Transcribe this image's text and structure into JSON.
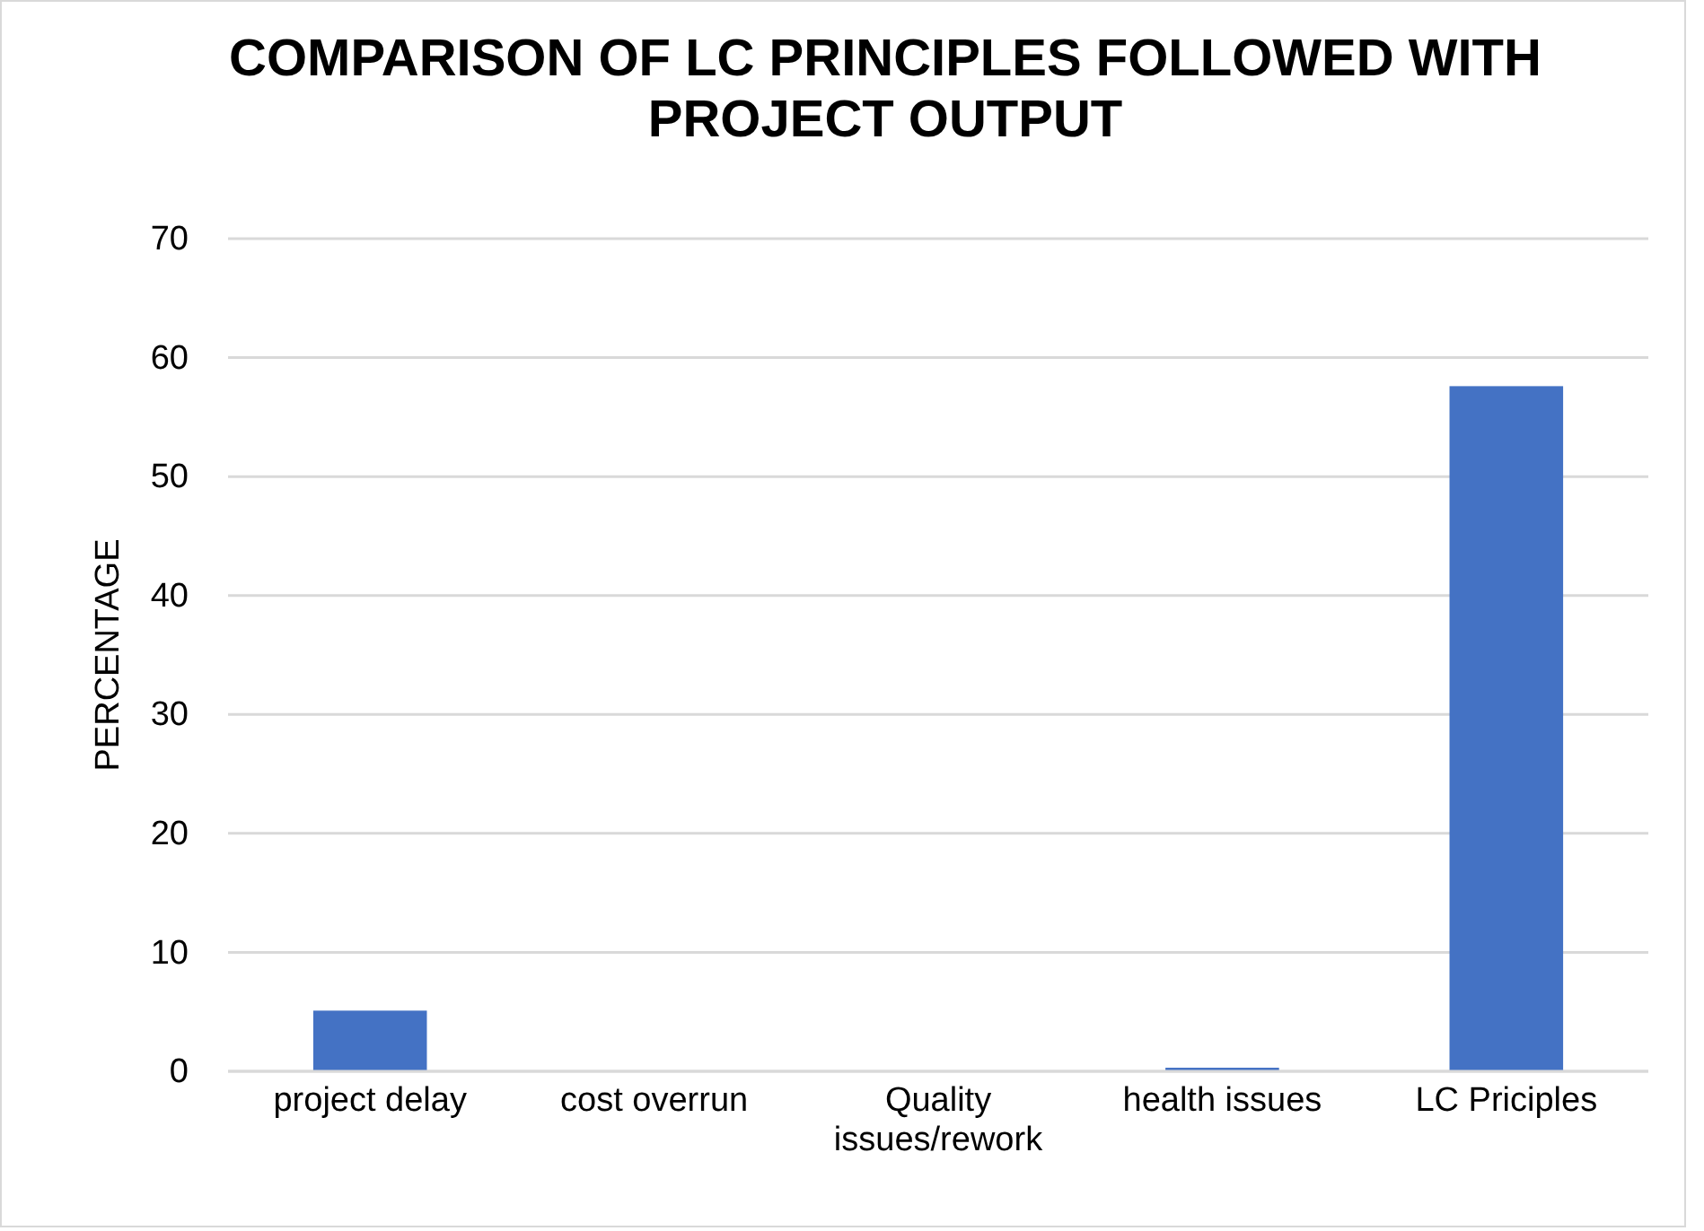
{
  "chart_data": {
    "type": "bar",
    "title": "COMPARISON OF LC PRINCIPLES FOLLOWED WITH PROJECT OUTPUT",
    "ylabel": "PERCENTAGE",
    "categories": [
      "project delay",
      "cost overrun",
      "Quality issues/rework",
      "health issues",
      "LC Priciples"
    ],
    "values": [
      5.1,
      0,
      0,
      0.3,
      57.6
    ],
    "color": "#4472c4",
    "ylim": [
      0,
      70
    ],
    "yticks": [
      0,
      10,
      20,
      30,
      40,
      50,
      60,
      70
    ],
    "grid": "y"
  }
}
